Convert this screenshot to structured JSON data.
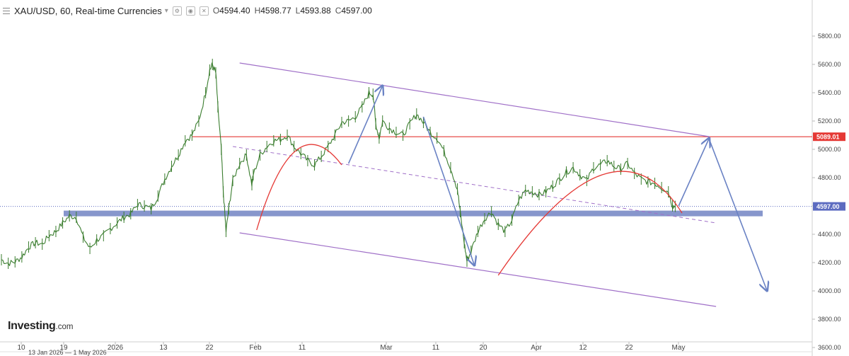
{
  "header": {
    "symbol": "XAU/USD, 60, Real-time Currencies",
    "open_label": "O",
    "open": "4594.40",
    "high_label": "H",
    "high": "4598.77",
    "low_label": "L",
    "low": "4593.88",
    "close_label": "C",
    "close": "4597.00"
  },
  "logo": {
    "brand": "Investing",
    "suffix": ".com"
  },
  "colors": {
    "candle": "#3a7d2e",
    "resistance": "#e53935",
    "channel": "#a070c8",
    "support_band": "#8796cc",
    "arrow": "#6a82c4",
    "dotted_price": "#5c6bc0"
  },
  "chart_data": {
    "type": "line",
    "title": "",
    "xlabel": "",
    "ylabel": "",
    "ylim": [
      3520,
      5920
    ],
    "y_ticks": [
      "5800.00",
      "5600.00",
      "5400.00",
      "5200.00",
      "5000.00",
      "4800.00",
      "4600.00",
      "4400.00",
      "4200.00",
      "4000.00",
      "3800.00",
      "3600.00"
    ],
    "x_ticks": [
      "10",
      "19",
      "2026",
      "13",
      "22",
      "Feb",
      "11",
      "Mar",
      "11",
      "20",
      "Apr",
      "12",
      "22",
      "May"
    ],
    "series": [
      {
        "values": [
          [
            0,
            4220
          ],
          [
            1,
            4195
          ],
          [
            2,
            4205
          ],
          [
            3,
            4240
          ],
          [
            4,
            4310
          ],
          [
            5,
            4340
          ],
          [
            6,
            4330
          ],
          [
            7,
            4390
          ],
          [
            8,
            4420
          ],
          [
            9,
            4480
          ],
          [
            10,
            4530
          ],
          [
            11,
            4520
          ],
          [
            12,
            4380
          ],
          [
            13,
            4300
          ],
          [
            14,
            4360
          ],
          [
            15,
            4390
          ],
          [
            16,
            4440
          ],
          [
            17,
            4480
          ],
          [
            18,
            4520
          ],
          [
            19,
            4545
          ],
          [
            20,
            4610
          ],
          [
            21,
            4600
          ],
          [
            22,
            4580
          ],
          [
            23,
            4670
          ],
          [
            24,
            4790
          ],
          [
            25,
            4880
          ],
          [
            26,
            4960
          ],
          [
            27,
            5060
          ],
          [
            28,
            5100
          ],
          [
            29,
            5200
          ],
          [
            30,
            5400
          ],
          [
            30.6,
            5560
          ],
          [
            31,
            5600
          ],
          [
            31.5,
            5540
          ],
          [
            31.8,
            5300
          ],
          [
            32.3,
            5000
          ],
          [
            32.6,
            4700
          ],
          [
            33,
            4420
          ],
          [
            33.4,
            4580
          ],
          [
            34,
            4780
          ],
          [
            35,
            4900
          ],
          [
            36,
            4960
          ],
          [
            36.8,
            4750
          ],
          [
            37,
            4820
          ],
          [
            38,
            4960
          ],
          [
            39,
            5020
          ],
          [
            40,
            5060
          ],
          [
            41,
            5070
          ],
          [
            42,
            5100
          ],
          [
            43,
            5020
          ],
          [
            44,
            4970
          ],
          [
            45,
            4920
          ],
          [
            46,
            4890
          ],
          [
            47,
            4950
          ],
          [
            48,
            5020
          ],
          [
            49,
            5100
          ],
          [
            50,
            5190
          ],
          [
            51,
            5200
          ],
          [
            52,
            5230
          ],
          [
            53,
            5300
          ],
          [
            54,
            5400
          ],
          [
            54.6,
            5390
          ],
          [
            55,
            5180
          ],
          [
            55.5,
            5080
          ],
          [
            56,
            5200
          ],
          [
            57,
            5150
          ],
          [
            58,
            5120
          ],
          [
            59,
            5100
          ],
          [
            60,
            5180
          ],
          [
            61,
            5250
          ],
          [
            62,
            5190
          ],
          [
            63,
            5120
          ],
          [
            64,
            5080
          ],
          [
            65,
            4990
          ],
          [
            66,
            4870
          ],
          [
            67,
            4720
          ],
          [
            67.4,
            4560
          ],
          [
            68,
            4340
          ],
          [
            68.4,
            4210
          ],
          [
            69,
            4280
          ],
          [
            70,
            4420
          ],
          [
            71,
            4510
          ],
          [
            72,
            4560
          ],
          [
            73,
            4470
          ],
          [
            74,
            4420
          ],
          [
            75,
            4500
          ],
          [
            76,
            4640
          ],
          [
            77,
            4710
          ],
          [
            78,
            4700
          ],
          [
            79,
            4680
          ],
          [
            80,
            4700
          ],
          [
            81,
            4740
          ],
          [
            82,
            4790
          ],
          [
            83,
            4840
          ],
          [
            84,
            4870
          ],
          [
            85,
            4820
          ],
          [
            86,
            4780
          ],
          [
            87,
            4870
          ],
          [
            88,
            4890
          ],
          [
            89,
            4920
          ],
          [
            90,
            4880
          ],
          [
            91,
            4860
          ],
          [
            92,
            4900
          ],
          [
            93,
            4830
          ],
          [
            94,
            4790
          ],
          [
            95,
            4770
          ],
          [
            96,
            4760
          ],
          [
            97,
            4730
          ],
          [
            98,
            4700
          ],
          [
            98.6,
            4600
          ],
          [
            99,
            4597
          ]
        ]
      }
    ],
    "annotations": {
      "resistance": {
        "y": 5089.01,
        "label": "5089.01"
      },
      "last_price": {
        "y": 4597,
        "label": "4597.00"
      },
      "support_band": {
        "y": 4547
      },
      "channel_upper": [
        [
          35,
          5610
        ],
        [
          104,
          5090
        ]
      ],
      "channel_lower": [
        [
          35,
          4410
        ],
        [
          105,
          3890
        ]
      ],
      "dashed_midline": [
        [
          34,
          5020
        ],
        [
          105,
          4480
        ]
      ],
      "arcs": [
        {
          "from": [
            37.5,
            4430
          ],
          "control": [
            43,
            5330
          ],
          "to": [
            50,
            4890
          ]
        },
        {
          "from": [
            73,
            4110
          ],
          "control": [
            90,
            5310
          ],
          "to": [
            100,
            4550
          ]
        }
      ],
      "arrows": [
        {
          "from": [
            51,
            4900
          ],
          "to": [
            56,
            5450
          ]
        },
        {
          "from": [
            62,
            5230
          ],
          "to": [
            69.5,
            4180
          ]
        },
        {
          "from": [
            99.5,
            4600
          ],
          "to": [
            104,
            5080
          ]
        },
        {
          "from": [
            104,
            5070
          ],
          "to": [
            112.5,
            4000
          ]
        }
      ]
    }
  },
  "footer": {
    "date_strip": "13 Jan 2026 — 1 May 2026"
  }
}
